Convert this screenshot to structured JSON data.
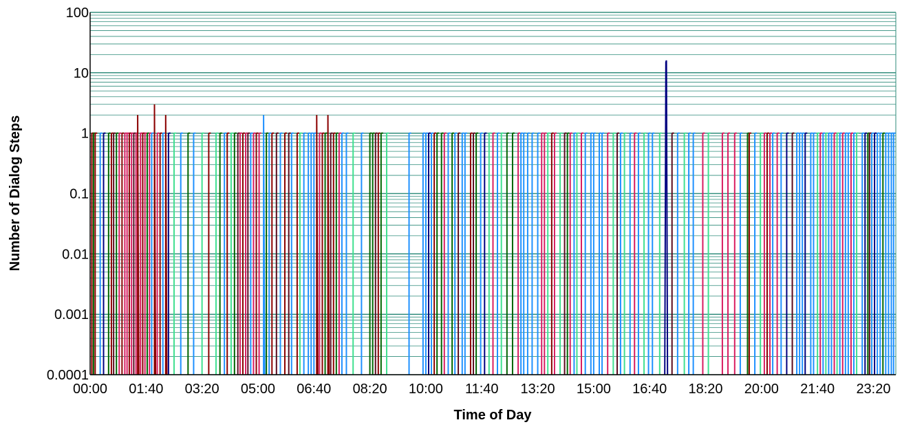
{
  "chart_data": {
    "type": "line",
    "title": "",
    "xlabel": "Time of Day",
    "ylabel": "Number of Dialog Steps",
    "x_unit": "time of day (HH:MM)",
    "xlim": [
      "00:00",
      "24:00"
    ],
    "ylim": [
      0.0001,
      100
    ],
    "yscale": "log",
    "grid": true,
    "legend": "none",
    "x_ticks": [
      "00:00",
      "01:40",
      "03:20",
      "05:00",
      "06:40",
      "08:20",
      "10:00",
      "11:40",
      "13:20",
      "15:00",
      "16:40",
      "18:20",
      "20:00",
      "21:40",
      "23:20"
    ],
    "y_ticks": [
      "0.0001",
      "0.001",
      "0.01",
      "0.1",
      "1",
      "10",
      "100"
    ],
    "colors": {
      "grid": "#2e8b7a",
      "axis": "#000000",
      "palette": [
        "#8b0000",
        "#006400",
        "#d81b60",
        "#1e90ff",
        "#40e090",
        "#5a0a1e",
        "#000080",
        "#6b2a2a"
      ]
    },
    "series": [
      {
        "color": "#000080",
        "points": [
          [
            "17:07",
            0.0001
          ],
          [
            "17:09",
            15
          ],
          [
            "17:10",
            16
          ],
          [
            "17:12",
            0.0001
          ]
        ]
      },
      {
        "color": "#8b0000",
        "points": [
          [
            "01:55",
            0.0001
          ],
          [
            "01:55",
            3
          ],
          [
            "01:57",
            0.0001
          ]
        ]
      },
      {
        "color": "#8b0000",
        "points": [
          [
            "01:25",
            0.0001
          ],
          [
            "01:25",
            2
          ],
          [
            "01:27",
            0.0001
          ]
        ]
      },
      {
        "color": "#8b0000",
        "points": [
          [
            "02:15",
            0.0001
          ],
          [
            "02:15",
            2
          ],
          [
            "02:17",
            0.0001
          ]
        ]
      },
      {
        "color": "#8b0000",
        "points": [
          [
            "06:45",
            0.0001
          ],
          [
            "06:45",
            2
          ],
          [
            "06:47",
            0.0001
          ]
        ]
      },
      {
        "color": "#8b0000",
        "points": [
          [
            "07:05",
            0.0001
          ],
          [
            "07:05",
            2
          ],
          [
            "07:07",
            0.0001
          ]
        ]
      },
      {
        "color": "#1e90ff",
        "points": [
          [
            "05:10",
            0.0001
          ],
          [
            "05:10",
            2
          ],
          [
            "05:12",
            0.0001
          ]
        ]
      }
    ],
    "spikes_value": 1,
    "spikes": [
      [
        "00:03",
        "#8b0000"
      ],
      [
        "00:06",
        "#006400"
      ],
      [
        "00:09",
        "#8b0000"
      ],
      [
        "00:18",
        "#1e90ff"
      ],
      [
        "00:24",
        "#000080"
      ],
      [
        "00:33",
        "#006400"
      ],
      [
        "00:38",
        "#8b0000"
      ],
      [
        "00:42",
        "#5a0a1e"
      ],
      [
        "00:47",
        "#006400"
      ],
      [
        "00:52",
        "#d81b60"
      ],
      [
        "00:57",
        "#8b0000"
      ],
      [
        "01:02",
        "#d81b60"
      ],
      [
        "01:06",
        "#d81b60"
      ],
      [
        "01:10",
        "#8b0000"
      ],
      [
        "01:14",
        "#d81b60"
      ],
      [
        "01:18",
        "#5a0a1e"
      ],
      [
        "01:22",
        "#d81b60"
      ],
      [
        "01:30",
        "#d81b60"
      ],
      [
        "01:34",
        "#8b0000"
      ],
      [
        "01:38",
        "#d81b60"
      ],
      [
        "01:42",
        "#006400"
      ],
      [
        "01:46",
        "#d81b60"
      ],
      [
        "01:50",
        "#1e90ff"
      ],
      [
        "02:00",
        "#d81b60"
      ],
      [
        "02:05",
        "#8b0000"
      ],
      [
        "02:10",
        "#1e90ff"
      ],
      [
        "02:20",
        "#000080"
      ],
      [
        "02:30",
        "#40e090"
      ],
      [
        "02:42",
        "#1e90ff"
      ],
      [
        "02:55",
        "#006400"
      ],
      [
        "03:05",
        "#1e90ff"
      ],
      [
        "03:20",
        "#40e090"
      ],
      [
        "03:32",
        "#8b0000"
      ],
      [
        "03:45",
        "#40e090"
      ],
      [
        "03:52",
        "#006400"
      ],
      [
        "04:00",
        "#1e90ff"
      ],
      [
        "04:05",
        "#8b0000"
      ],
      [
        "04:12",
        "#40e090"
      ],
      [
        "04:18",
        "#006400"
      ],
      [
        "04:24",
        "#5a0a1e"
      ],
      [
        "04:28",
        "#d81b60"
      ],
      [
        "04:33",
        "#8b0000"
      ],
      [
        "04:38",
        "#d81b60"
      ],
      [
        "04:42",
        "#5a0a1e"
      ],
      [
        "04:47",
        "#1e90ff"
      ],
      [
        "04:52",
        "#d81b60"
      ],
      [
        "04:57",
        "#8b0000"
      ],
      [
        "05:02",
        "#d81b60"
      ],
      [
        "05:15",
        "#006400"
      ],
      [
        "05:20",
        "#1e90ff"
      ],
      [
        "05:25",
        "#8b0000"
      ],
      [
        "05:33",
        "#5a0a1e"
      ],
      [
        "05:40",
        "#1e90ff"
      ],
      [
        "05:48",
        "#8b0000"
      ],
      [
        "05:55",
        "#5a0a1e"
      ],
      [
        "06:00",
        "#1e90ff"
      ],
      [
        "06:10",
        "#8b0000"
      ],
      [
        "06:15",
        "#40e090"
      ],
      [
        "06:22",
        "#1e90ff"
      ],
      [
        "06:30",
        "#1e90ff"
      ],
      [
        "06:35",
        "#1e90ff"
      ],
      [
        "06:40",
        "#1e90ff"
      ],
      [
        "06:50",
        "#d81b60"
      ],
      [
        "06:55",
        "#8b0000"
      ],
      [
        "07:00",
        "#006400"
      ],
      [
        "07:10",
        "#5a0a1e"
      ],
      [
        "07:15",
        "#8b0000"
      ],
      [
        "07:20",
        "#006400"
      ],
      [
        "07:25",
        "#d81b60"
      ],
      [
        "07:30",
        "#1e90ff"
      ],
      [
        "07:38",
        "#1e90ff"
      ],
      [
        "07:50",
        "#40e090"
      ],
      [
        "08:05",
        "#1e90ff"
      ],
      [
        "08:20",
        "#006400"
      ],
      [
        "08:25",
        "#006400"
      ],
      [
        "08:30",
        "#5a0a1e"
      ],
      [
        "08:35",
        "#8b0000"
      ],
      [
        "08:40",
        "#006400"
      ],
      [
        "08:50",
        "#40e090"
      ],
      [
        "09:30",
        "#1e90ff"
      ],
      [
        "09:55",
        "#1e90ff"
      ],
      [
        "10:00",
        "#1e90ff"
      ],
      [
        "10:05",
        "#000080"
      ],
      [
        "10:10",
        "#1e90ff"
      ],
      [
        "10:15",
        "#8b0000"
      ],
      [
        "10:20",
        "#006400"
      ],
      [
        "10:28",
        "#006400"
      ],
      [
        "10:33",
        "#d81b60"
      ],
      [
        "10:40",
        "#1e90ff"
      ],
      [
        "10:47",
        "#006400"
      ],
      [
        "10:52",
        "#1e90ff"
      ],
      [
        "10:58",
        "#5a0a1e"
      ],
      [
        "11:05",
        "#1e90ff"
      ],
      [
        "11:10",
        "#1e90ff"
      ],
      [
        "11:20",
        "#8b0000"
      ],
      [
        "11:25",
        "#5a0a1e"
      ],
      [
        "11:30",
        "#006400"
      ],
      [
        "11:38",
        "#1e90ff"
      ],
      [
        "11:45",
        "#000080"
      ],
      [
        "11:53",
        "#40e090"
      ],
      [
        "12:00",
        "#d81b60"
      ],
      [
        "12:08",
        "#1e90ff"
      ],
      [
        "12:15",
        "#40e090"
      ],
      [
        "12:25",
        "#006400"
      ],
      [
        "12:35",
        "#006400"
      ],
      [
        "12:45",
        "#d81b60"
      ],
      [
        "12:50",
        "#1e90ff"
      ],
      [
        "12:55",
        "#1e90ff"
      ],
      [
        "13:02",
        "#1e90ff"
      ],
      [
        "13:10",
        "#1e90ff"
      ],
      [
        "13:20",
        "#1e90ff"
      ],
      [
        "13:27",
        "#d81b60"
      ],
      [
        "13:32",
        "#d81b60"
      ],
      [
        "13:38",
        "#40e090"
      ],
      [
        "13:45",
        "#8b0000"
      ],
      [
        "13:50",
        "#d81b60"
      ],
      [
        "14:00",
        "#40e090"
      ],
      [
        "14:08",
        "#5a0a1e"
      ],
      [
        "14:13",
        "#006400"
      ],
      [
        "14:18",
        "#d81b60"
      ],
      [
        "14:25",
        "#1e90ff"
      ],
      [
        "14:30",
        "#40e090"
      ],
      [
        "14:38",
        "#d81b60"
      ],
      [
        "14:45",
        "#1e90ff"
      ],
      [
        "14:55",
        "#1e90ff"
      ],
      [
        "15:00",
        "#1e90ff"
      ],
      [
        "15:10",
        "#1e90ff"
      ],
      [
        "15:15",
        "#1e90ff"
      ],
      [
        "15:25",
        "#d81b60"
      ],
      [
        "15:35",
        "#40e090"
      ],
      [
        "15:42",
        "#5a0a1e"
      ],
      [
        "15:48",
        "#1e90ff"
      ],
      [
        "15:55",
        "#40e090"
      ],
      [
        "16:05",
        "#1e90ff"
      ],
      [
        "16:13",
        "#d81b60"
      ],
      [
        "16:20",
        "#1e90ff"
      ],
      [
        "16:30",
        "#40e090"
      ],
      [
        "16:38",
        "#1e90ff"
      ],
      [
        "16:45",
        "#1e90ff"
      ],
      [
        "16:58",
        "#40e090"
      ],
      [
        "17:20",
        "#5a0a1e"
      ],
      [
        "17:30",
        "#1e90ff"
      ],
      [
        "17:42",
        "#40e090"
      ],
      [
        "17:50",
        "#1e90ff"
      ],
      [
        "17:58",
        "#1e90ff"
      ],
      [
        "18:15",
        "#d81b60"
      ],
      [
        "18:25",
        "#40e090"
      ],
      [
        "18:50",
        "#d81b60"
      ],
      [
        "19:00",
        "#d81b60"
      ],
      [
        "19:12",
        "#d81b60"
      ],
      [
        "19:22",
        "#1e90ff"
      ],
      [
        "19:35",
        "#006400"
      ],
      [
        "19:38",
        "#8b0000"
      ],
      [
        "19:48",
        "#1e90ff"
      ],
      [
        "19:58",
        "#40e090"
      ],
      [
        "20:05",
        "#d81b60"
      ],
      [
        "20:10",
        "#8b0000"
      ],
      [
        "20:15",
        "#d81b60"
      ],
      [
        "20:20",
        "#1e90ff"
      ],
      [
        "20:28",
        "#d81b60"
      ],
      [
        "20:35",
        "#1e90ff"
      ],
      [
        "20:45",
        "#000080"
      ],
      [
        "20:55",
        "#5a0a1e"
      ],
      [
        "21:03",
        "#1e90ff"
      ],
      [
        "21:08",
        "#1e90ff"
      ],
      [
        "21:13",
        "#1e90ff"
      ],
      [
        "21:18",
        "#000080"
      ],
      [
        "21:28",
        "#1e90ff"
      ],
      [
        "21:33",
        "#1e90ff"
      ],
      [
        "21:40",
        "#40e090"
      ],
      [
        "21:45",
        "#d81b60"
      ],
      [
        "21:50",
        "#1e90ff"
      ],
      [
        "21:55",
        "#40e090"
      ],
      [
        "22:00",
        "#1e90ff"
      ],
      [
        "22:05",
        "#1e90ff"
      ],
      [
        "22:10",
        "#d81b60"
      ],
      [
        "22:15",
        "#40e090"
      ],
      [
        "22:20",
        "#1e90ff"
      ],
      [
        "22:25",
        "#d81b60"
      ],
      [
        "22:30",
        "#1e90ff"
      ],
      [
        "22:35",
        "#1e90ff"
      ],
      [
        "22:40",
        "#d81b60"
      ],
      [
        "22:45",
        "#1e90ff"
      ],
      [
        "22:50",
        "#40e090"
      ],
      [
        "23:00",
        "#1e90ff"
      ],
      [
        "23:05",
        "#000080"
      ],
      [
        "23:10",
        "#006400"
      ],
      [
        "23:13",
        "#5a0a1e"
      ],
      [
        "23:17",
        "#1e90ff"
      ],
      [
        "23:22",
        "#000080"
      ],
      [
        "23:27",
        "#1e90ff"
      ],
      [
        "23:32",
        "#1e90ff"
      ],
      [
        "23:37",
        "#006400"
      ],
      [
        "23:42",
        "#1e90ff"
      ],
      [
        "23:47",
        "#1e90ff"
      ],
      [
        "23:52",
        "#1e90ff"
      ],
      [
        "23:56",
        "#1e90ff"
      ]
    ]
  }
}
